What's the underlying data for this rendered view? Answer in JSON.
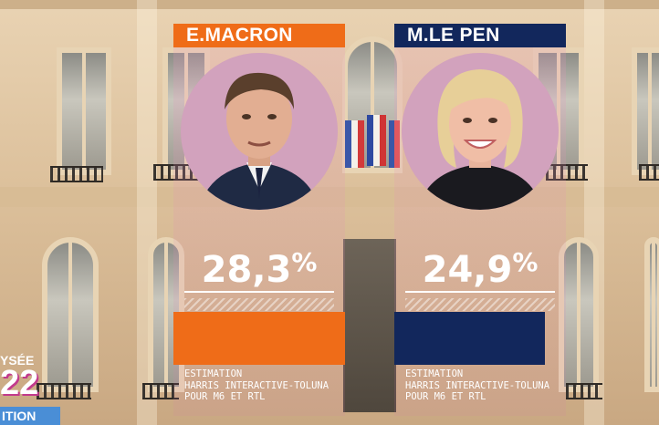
{
  "chart_data": {
    "type": "bar",
    "categories": [
      "E.MACRON",
      "M.LE PEN"
    ],
    "values": [
      28.3,
      24.9
    ],
    "value_labels": [
      "28,3%",
      "24,9%"
    ],
    "value_unit": "%",
    "colors": [
      "#ef6c18",
      "#12275c"
    ],
    "ylim": [
      0,
      28.3
    ],
    "orientation": "horizontal",
    "annotations": [
      "ESTIMATION\nHARRIS INTERACTIVE-TOLUNA\nPOUR M6 ET RTL",
      "ESTIMATION\nHARRIS INTERACTIVE-TOLUNA\nPOUR M6 ET RTL"
    ]
  },
  "candidates": [
    {
      "name": "E.MACRON",
      "percent": "28,3%",
      "value": 28.3,
      "color": "#ef6c18",
      "source": [
        "ESTIMATION",
        "HARRIS INTERACTIVE-TOLUNA",
        "POUR M6 ET RTL"
      ]
    },
    {
      "name": "M.LE PEN",
      "percent": "24,9%",
      "value": 24.9,
      "color": "#12275c",
      "source": [
        "ESTIMATION",
        "HARRIS INTERACTIVE-TOLUNA",
        "POUR M6 ET RTL"
      ]
    }
  ],
  "channel_bug": {
    "title": "YSÉE",
    "year": "22",
    "band": "ITION"
  },
  "icons": [
    "macron-portrait-icon",
    "le-pen-portrait-icon",
    "french-flags-icon"
  ]
}
